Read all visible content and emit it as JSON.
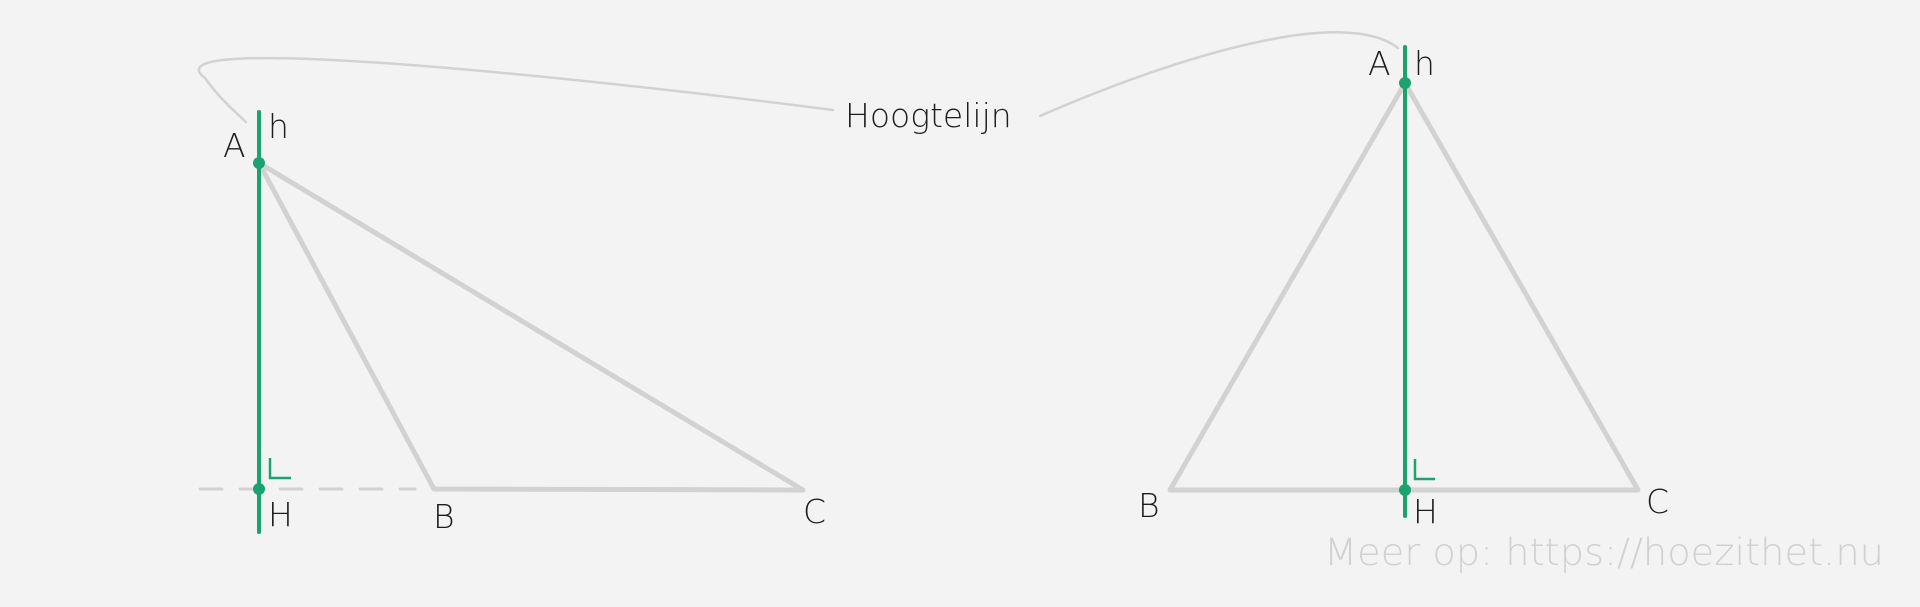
{
  "title": "Hoogtelijn",
  "watermark": "Meer op: https://hoezithet.nu",
  "colors": {
    "background": "#f3f3f3",
    "triangle": "#d2d2d2",
    "altitude": "#1aa36f",
    "label": "#1d1d1d",
    "watermark": "#d0d0d0"
  },
  "left_triangle": {
    "label_A": "A",
    "label_B": "B",
    "label_C": "C",
    "label_H": "H",
    "label_h": "h"
  },
  "right_triangle": {
    "label_A": "A",
    "label_B": "B",
    "label_C": "C",
    "label_H": "H",
    "label_h": "h"
  }
}
